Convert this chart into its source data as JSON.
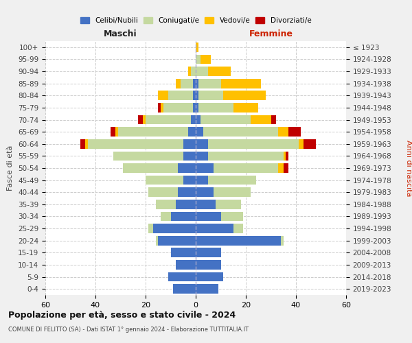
{
  "age_groups_bottom_to_top": [
    "0-4",
    "5-9",
    "10-14",
    "15-19",
    "20-24",
    "25-29",
    "30-34",
    "35-39",
    "40-44",
    "45-49",
    "50-54",
    "55-59",
    "60-64",
    "65-69",
    "70-74",
    "75-79",
    "80-84",
    "85-89",
    "90-94",
    "95-99",
    "100+"
  ],
  "birth_years_bottom_to_top": [
    "2019-2023",
    "2014-2018",
    "2009-2013",
    "2004-2008",
    "1999-2003",
    "1994-1998",
    "1989-1993",
    "1984-1988",
    "1979-1983",
    "1974-1978",
    "1969-1973",
    "1964-1968",
    "1959-1963",
    "1954-1958",
    "1949-1953",
    "1944-1948",
    "1939-1943",
    "1934-1938",
    "1929-1933",
    "1924-1928",
    "≤ 1923"
  ],
  "colors": {
    "celibi": "#4472c4",
    "coniugati": "#c5d9a0",
    "vedovi": "#ffc000",
    "divorziati": "#c00000"
  },
  "legend_labels": [
    "Celibi/Nubili",
    "Coniugati/e",
    "Vedovi/e",
    "Divorziati/e"
  ],
  "maschi": {
    "celibi": [
      9,
      11,
      8,
      10,
      15,
      17,
      10,
      8,
      7,
      5,
      7,
      5,
      5,
      3,
      2,
      1,
      1,
      1,
      0,
      0,
      0
    ],
    "coniugati": [
      0,
      0,
      0,
      0,
      1,
      2,
      4,
      8,
      12,
      15,
      22,
      28,
      38,
      28,
      18,
      12,
      10,
      5,
      2,
      0,
      0
    ],
    "vedovi": [
      0,
      0,
      0,
      0,
      0,
      0,
      0,
      0,
      0,
      0,
      0,
      0,
      1,
      1,
      1,
      1,
      4,
      2,
      1,
      0,
      0
    ],
    "divorziati": [
      0,
      0,
      0,
      0,
      0,
      0,
      0,
      0,
      0,
      0,
      0,
      0,
      2,
      2,
      2,
      1,
      0,
      0,
      0,
      0,
      0
    ]
  },
  "femmine": {
    "nubili": [
      9,
      11,
      10,
      10,
      34,
      15,
      10,
      8,
      7,
      5,
      7,
      5,
      5,
      3,
      2,
      1,
      1,
      1,
      0,
      0,
      0
    ],
    "coniugate": [
      0,
      0,
      0,
      0,
      1,
      4,
      9,
      10,
      15,
      19,
      26,
      30,
      36,
      30,
      20,
      14,
      10,
      9,
      5,
      2,
      0
    ],
    "vedove": [
      0,
      0,
      0,
      0,
      0,
      0,
      0,
      0,
      0,
      0,
      2,
      1,
      2,
      4,
      8,
      10,
      17,
      16,
      9,
      4,
      1
    ],
    "divorziate": [
      0,
      0,
      0,
      0,
      0,
      0,
      0,
      0,
      0,
      0,
      2,
      1,
      5,
      5,
      2,
      0,
      0,
      0,
      0,
      0,
      0
    ]
  },
  "xlim": 60,
  "title_main": "Popolazione per età, sesso e stato civile - 2024",
  "title_sub": "COMUNE DI FELITTO (SA) - Dati ISTAT 1° gennaio 2024 - Elaborazione TUTTITALIA.IT",
  "xlabel_left": "Maschi",
  "xlabel_right": "Femmine",
  "ylabel_left": "Fasce di età",
  "ylabel_right": "Anni di nascita",
  "bg_color": "#f0f0f0",
  "plot_bg": "#ffffff"
}
